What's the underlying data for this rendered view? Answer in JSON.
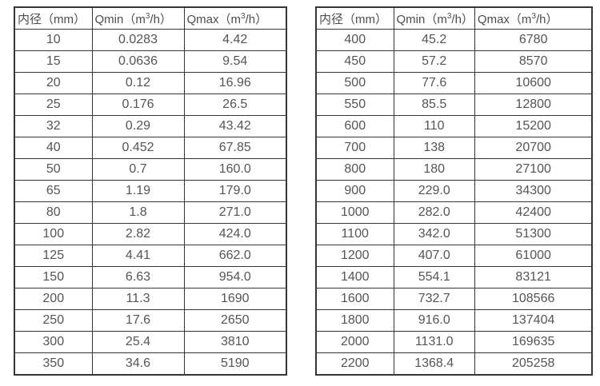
{
  "page": {
    "background": "#ffffff",
    "border_color": "#363636",
    "text_color": "#4d4d4d"
  },
  "tables": [
    {
      "name": "flow-range-table-small-diameters",
      "headers": [
        {
          "pre": "内径（mm）",
          "sup": "",
          "post": ""
        },
        {
          "pre": "Qmin（m",
          "sup": "3",
          "post": "/h）"
        },
        {
          "pre": "Qmax（m",
          "sup": "3",
          "post": "/h）"
        }
      ],
      "rows": [
        [
          "10",
          "0.0283",
          "4.42"
        ],
        [
          "15",
          "0.0636",
          "9.54"
        ],
        [
          "20",
          "0.12",
          "16.96"
        ],
        [
          "25",
          "0.176",
          "26.5"
        ],
        [
          "32",
          "0.29",
          "43.42"
        ],
        [
          "40",
          "0.452",
          "67.85"
        ],
        [
          "50",
          "0.7",
          "160.0"
        ],
        [
          "65",
          "1.19",
          "179.0"
        ],
        [
          "80",
          "1.8",
          "271.0"
        ],
        [
          "100",
          "2.82",
          "424.0"
        ],
        [
          "125",
          "4.41",
          "662.0"
        ],
        [
          "150",
          "6.63",
          "954.0"
        ],
        [
          "200",
          "11.3",
          "1690"
        ],
        [
          "250",
          "17.6",
          "2650"
        ],
        [
          "300",
          "25.4",
          "3810"
        ],
        [
          "350",
          "34.6",
          "5190"
        ]
      ]
    },
    {
      "name": "flow-range-table-large-diameters",
      "headers": [
        {
          "pre": "内径（mm）",
          "sup": "",
          "post": ""
        },
        {
          "pre": "Qmin（m",
          "sup": "3",
          "post": "/h）"
        },
        {
          "pre": "Qmax（m",
          "sup": "3",
          "post": "/h）"
        }
      ],
      "rows": [
        [
          "400",
          "45.2",
          "6780"
        ],
        [
          "450",
          "57.2",
          "8570"
        ],
        [
          "500",
          "77.6",
          "10600"
        ],
        [
          "550",
          "85.5",
          "12800"
        ],
        [
          "600",
          "110",
          "15200"
        ],
        [
          "700",
          "138",
          "20700"
        ],
        [
          "800",
          "180",
          "27100"
        ],
        [
          "900",
          "229.0",
          "34300"
        ],
        [
          "1000",
          "282.0",
          "42400"
        ],
        [
          "1100",
          "342.0",
          "51300"
        ],
        [
          "1200",
          "407.0",
          "61000"
        ],
        [
          "1400",
          "554.1",
          "83121"
        ],
        [
          "1600",
          "732.7",
          "108566"
        ],
        [
          "1800",
          "916.0",
          "137404"
        ],
        [
          "2000",
          "1131.0",
          "169635"
        ],
        [
          "2200",
          "1368.4",
          "205258"
        ]
      ]
    }
  ]
}
